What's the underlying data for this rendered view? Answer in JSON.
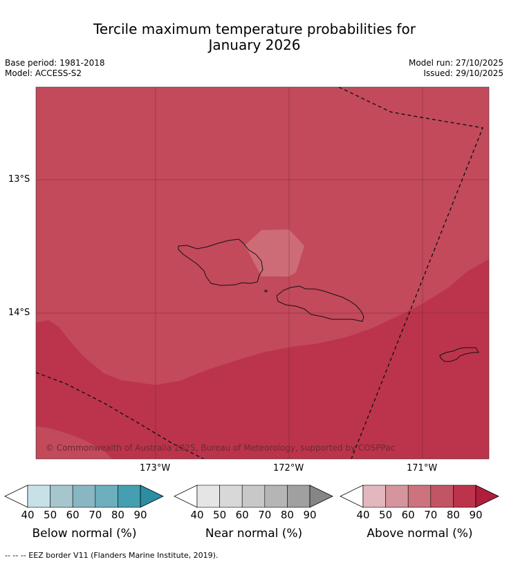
{
  "title": {
    "line1": "Tercile maximum temperature probabilities for",
    "line2": "January 2026"
  },
  "meta_left": {
    "base_period": "Base period: 1981-2018",
    "model": "Model: ACCESS-S2"
  },
  "meta_right": {
    "model_run": "Model run: 27/10/2025",
    "issued": "Issued: 29/10/2025"
  },
  "axes": {
    "lat_labels": [
      "13°S",
      "14°S"
    ],
    "lon_labels": [
      "173°W",
      "172°W",
      "171°W"
    ]
  },
  "map": {
    "background_color": "#c24a5b",
    "darker_band_color": "#bb344c",
    "light_patch_color": "#cd6c77",
    "land_outline_color": "#111111",
    "eez_color": "#111111"
  },
  "copyright": "© Commonwealth of Australia 2025, Bureau of Meteorology, supported by COSPPac",
  "colorbars": [
    {
      "title": "Below normal (%)",
      "ticks": [
        "40",
        "50",
        "60",
        "70",
        "80",
        "90"
      ],
      "colors": [
        "#ffffff",
        "#c8e1e8",
        "#a6c6cd",
        "#89b6c3",
        "#6dafbd",
        "#469fb0",
        "#2b8ea2"
      ]
    },
    {
      "title": "Near normal (%)",
      "ticks": [
        "40",
        "50",
        "60",
        "70",
        "80",
        "90"
      ],
      "colors": [
        "#ffffff",
        "#e5e5e5",
        "#d8d8d8",
        "#c8c8c8",
        "#b5b5b5",
        "#a0a0a0",
        "#858585"
      ]
    },
    {
      "title": "Above normal (%)",
      "ticks": [
        "40",
        "50",
        "60",
        "70",
        "80",
        "90"
      ],
      "colors": [
        "#ffffff",
        "#e2b7bd",
        "#d5959d",
        "#cd737d",
        "#c25563",
        "#bb344c",
        "#b01e3b"
      ]
    }
  ],
  "footer": "--  --  -- EEZ border V11 (Flanders Marine Institute, 2019)."
}
